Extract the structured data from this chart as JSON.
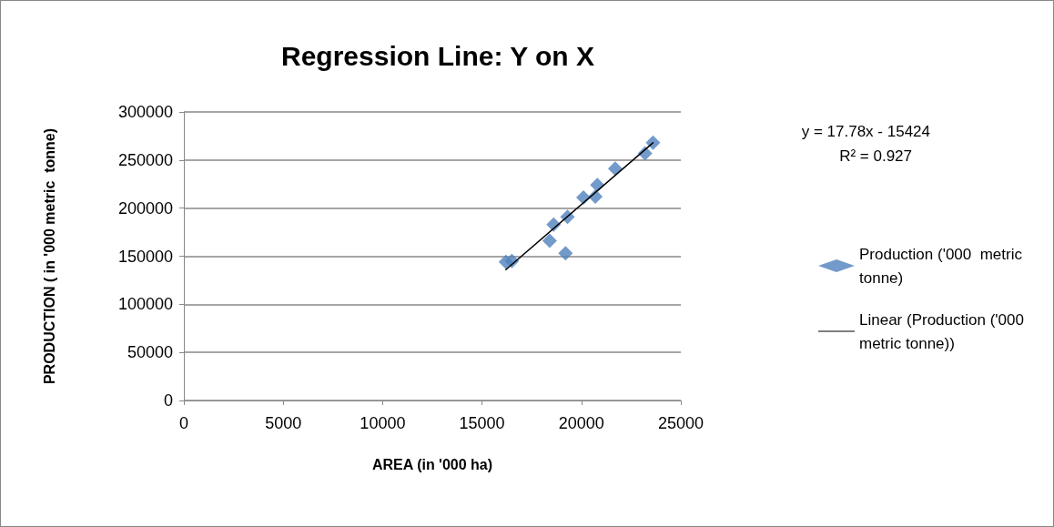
{
  "chart_data": {
    "type": "scatter",
    "title": "Regression Line: Y on X",
    "xlabel": "AREA (in '000 ha)",
    "ylabel": "PRODUCTION ( in '000 metric  tonne)",
    "annotations": [
      "y = 17.78x - 15424",
      "R² = 0.927"
    ],
    "xlim": [
      0,
      25000
    ],
    "xticks": [
      0,
      5000,
      10000,
      15000,
      20000,
      25000
    ],
    "ylim": [
      0,
      300000
    ],
    "yticks": [
      0,
      50000,
      100000,
      150000,
      200000,
      250000,
      300000
    ],
    "grid": "y",
    "legend": "right",
    "marker": "diamond",
    "series": [
      {
        "name": "Production ('000  metric tonne)",
        "color": "#4f81bd",
        "x": [
          16200,
          16500,
          18400,
          18600,
          19200,
          19300,
          20100,
          20700,
          20800,
          21700,
          23200,
          23600
        ],
        "values": [
          144000,
          145000,
          166000,
          183000,
          153000,
          191000,
          211000,
          212000,
          224000,
          241000,
          257000,
          268000
        ]
      },
      {
        "name": "Linear (Production ('000 metric tonne))",
        "type": "line",
        "color": "#000000",
        "marker": "none",
        "line_style": "solid",
        "x": [
          16200,
          23600
        ],
        "values": [
          136000,
          268000
        ]
      }
    ]
  }
}
